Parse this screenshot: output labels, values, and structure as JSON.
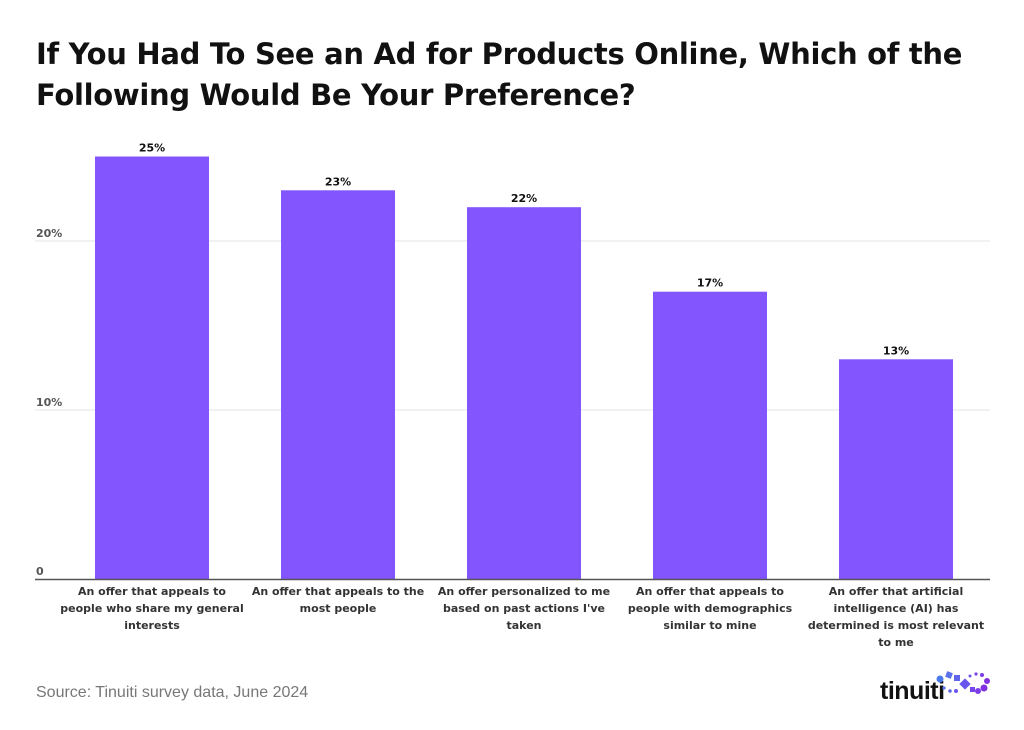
{
  "chart_data": {
    "type": "bar",
    "title": "If You Had To See an Ad for Products Online, Which of the Following Would Be Your Preference?",
    "categories": [
      "An offer that appeals to people who share my general interests",
      "An offer that appeals to the most people",
      "An offer personalized to me based on past actions I've taken",
      "An offer that appeals to people with demographics similar to mine",
      "An offer that artificial intelligence (AI) has determined is most relevant to me"
    ],
    "category_lines": [
      [
        "An offer that appeals to",
        "people who share my general",
        "interests"
      ],
      [
        "An offer that appeals to the",
        "most people"
      ],
      [
        "An offer personalized to me",
        "based on past actions I've",
        "taken"
      ],
      [
        "An offer that appeals to",
        "people with demographics",
        "similar to mine"
      ],
      [
        "An offer that artificial",
        "intelligence (AI) has",
        "determined is most relevant",
        "to me"
      ]
    ],
    "values": [
      25,
      23,
      22,
      17,
      13
    ],
    "data_labels": [
      "25%",
      "23%",
      "22%",
      "17%",
      "13%"
    ],
    "ylim": [
      0,
      25
    ],
    "yticks": [
      0,
      10,
      20
    ],
    "ytick_labels": [
      "0",
      "10%",
      "20%"
    ],
    "xlabel": "",
    "ylabel": "",
    "grid": true,
    "bar_color": "#8355FF"
  },
  "source": "Source: Tinuiti survey data, June 2024",
  "logo": {
    "text": "tinuiti"
  }
}
